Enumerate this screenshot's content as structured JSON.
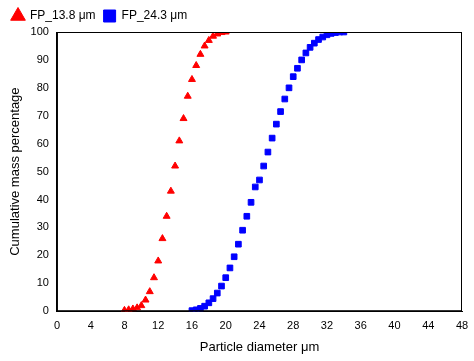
{
  "chart_data": {
    "type": "scatter",
    "x_label": "Particle diameter μm",
    "y_label": "Cumulative mass percentage",
    "xlim": [
      0,
      48
    ],
    "xticks": [
      0,
      4,
      8,
      12,
      16,
      20,
      24,
      28,
      32,
      36,
      40,
      44,
      48
    ],
    "ylim": [
      0,
      100
    ],
    "yticks": [
      0,
      10,
      20,
      30,
      40,
      50,
      60,
      70,
      80,
      90,
      100
    ],
    "grid": false,
    "legend": "upper left",
    "series": [
      {
        "name": "FP_13.8 μm",
        "color": "#ff0000",
        "marker": "triangle",
        "x": [
          8,
          8.5,
          9,
          9.5,
          10,
          10.5,
          11,
          11.5,
          12,
          12.5,
          13,
          13.5,
          14,
          14.5,
          15,
          15.5,
          16,
          16.5,
          17,
          17.5,
          18,
          18.5,
          19,
          19.5,
          20
        ],
        "values": [
          0.3,
          0.5,
          0.8,
          1.2,
          2,
          4,
          7,
          12,
          18,
          26,
          34,
          43,
          52,
          61,
          69,
          77,
          83,
          88,
          92,
          95,
          97,
          98.5,
          99.3,
          99.8,
          100
        ]
      },
      {
        "name": "FP_24.3 μm",
        "color": "#0000ff",
        "marker": "square",
        "x": [
          16,
          16.5,
          17,
          17.5,
          18,
          18.5,
          19,
          19.5,
          20,
          20.5,
          21,
          21.5,
          22,
          22.5,
          23,
          23.5,
          24,
          24.5,
          25,
          25.5,
          26,
          26.5,
          27,
          27.5,
          28,
          28.5,
          29,
          29.5,
          30,
          30.5,
          31,
          31.5,
          32,
          32.5,
          33,
          33.5,
          34
        ],
        "values": [
          0.2,
          0.5,
          1,
          1.8,
          3,
          4.5,
          6.5,
          9,
          12,
          15.5,
          19.5,
          24,
          29,
          34,
          39,
          44.5,
          47,
          52,
          57,
          62,
          67,
          71.5,
          76,
          80,
          84,
          87,
          90,
          92.5,
          94.5,
          96,
          97.3,
          98.2,
          99,
          99.5,
          99.8,
          100,
          100
        ]
      }
    ]
  }
}
